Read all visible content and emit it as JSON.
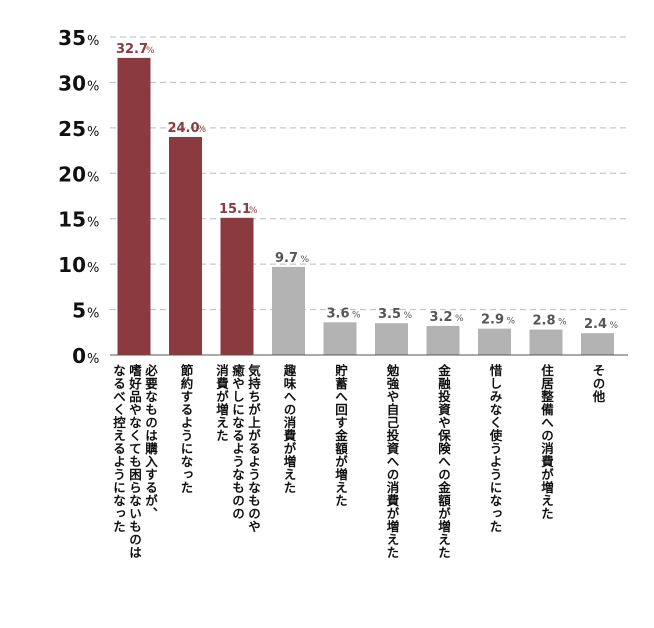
{
  "chart_data": {
    "type": "bar",
    "title": "",
    "categories": [
      "必要なものは購入するが、\n嗜好品やなくても困らないものは\nなるべく控えるようになった",
      "節約するようになった",
      "気持ちが上がるようなものや\n癒やしになるようなものの\n消費が増えた",
      "趣味への消費が増えた",
      "貯蓄へ回す金額が増えた",
      "勉強や自己投資への消費が増えた",
      "金融投資や保険への金額が増えた",
      "惜しみなく使うようになった",
      "住居整備への消費が増えた",
      "その他"
    ],
    "values": [
      32.7,
      24.0,
      15.1,
      9.7,
      3.6,
      3.5,
      3.2,
      2.9,
      2.8,
      2.4
    ],
    "value_labels": [
      "32.7",
      "24.0",
      "15.1",
      "9.7",
      "3.6",
      "3.5",
      "3.2",
      "2.9",
      "2.8",
      "2.4"
    ],
    "unit": "%",
    "ylim": [
      0,
      35
    ],
    "yticks": [
      "0",
      "5",
      "10",
      "15",
      "20",
      "25",
      "30",
      "35"
    ],
    "grid": true,
    "colors": {
      "highlight": "#8b3a3f",
      "normal": "#b3b3b3",
      "highlight_label": "#8b3a3f",
      "normal_label": "#555555",
      "grid": "#bbbbbb"
    },
    "highlight_count": 3
  }
}
